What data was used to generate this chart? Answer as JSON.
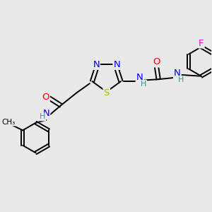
{
  "bg_color": "#e9e9e9",
  "atom_colors": {
    "N": "#0000ee",
    "O": "#ee0000",
    "S": "#bbbb00",
    "F": "#ee00ee",
    "C": "#000000",
    "H": "#339999"
  },
  "bond_color": "#000000",
  "bond_width": 1.4
}
